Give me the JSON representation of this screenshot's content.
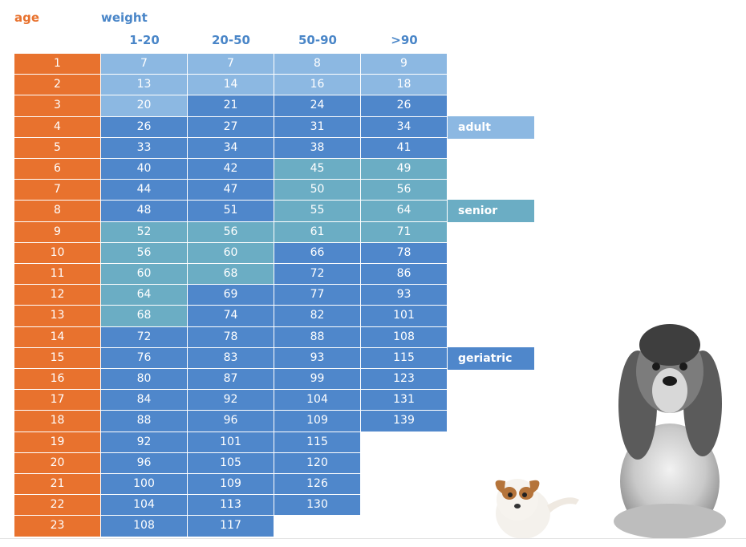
{
  "chart_data": {
    "type": "table",
    "row_header": "age",
    "column_group_header": "weight",
    "columns": [
      "1-20",
      "20-50",
      "50-90",
      ">90"
    ],
    "rows": [
      {
        "age": "1",
        "values": [
          "7",
          "7",
          "8",
          "9"
        ]
      },
      {
        "age": "2",
        "values": [
          "13",
          "14",
          "16",
          "18"
        ]
      },
      {
        "age": "3",
        "values": [
          "20",
          "21",
          "24",
          "26"
        ]
      },
      {
        "age": "4",
        "values": [
          "26",
          "27",
          "31",
          "34"
        ]
      },
      {
        "age": "5",
        "values": [
          "33",
          "34",
          "38",
          "41"
        ]
      },
      {
        "age": "6",
        "values": [
          "40",
          "42",
          "45",
          "49"
        ]
      },
      {
        "age": "7",
        "values": [
          "44",
          "47",
          "50",
          "56"
        ]
      },
      {
        "age": "8",
        "values": [
          "48",
          "51",
          "55",
          "64"
        ]
      },
      {
        "age": "9",
        "values": [
          "52",
          "56",
          "61",
          "71"
        ]
      },
      {
        "age": "10",
        "values": [
          "56",
          "60",
          "66",
          "78"
        ]
      },
      {
        "age": "11",
        "values": [
          "60",
          "68",
          "72",
          "86"
        ]
      },
      {
        "age": "12",
        "values": [
          "64",
          "69",
          "77",
          "93"
        ]
      },
      {
        "age": "13",
        "values": [
          "68",
          "74",
          "82",
          "101"
        ]
      },
      {
        "age": "14",
        "values": [
          "72",
          "78",
          "88",
          "108"
        ]
      },
      {
        "age": "15",
        "values": [
          "76",
          "83",
          "93",
          "115"
        ]
      },
      {
        "age": "16",
        "values": [
          "80",
          "87",
          "99",
          "123"
        ]
      },
      {
        "age": "17",
        "values": [
          "84",
          "92",
          "104",
          "131"
        ]
      },
      {
        "age": "18",
        "values": [
          "88",
          "96",
          "109",
          "139"
        ]
      },
      {
        "age": "19",
        "values": [
          "92",
          "101",
          "115",
          ""
        ]
      },
      {
        "age": "20",
        "values": [
          "96",
          "105",
          "120",
          ""
        ]
      },
      {
        "age": "21",
        "values": [
          "100",
          "109",
          "126",
          ""
        ]
      },
      {
        "age": "22",
        "values": [
          "104",
          "113",
          "130",
          ""
        ]
      },
      {
        "age": "23",
        "values": [
          "108",
          "117",
          "",
          ""
        ]
      }
    ],
    "stages": [
      "adult",
      "senior",
      "geriatric"
    ],
    "cell_stage": [
      [
        "adult",
        "adult",
        "adult",
        "adult"
      ],
      [
        "adult",
        "adult",
        "adult",
        "adult"
      ],
      [
        "adult",
        "geriatric",
        "geriatric",
        "geriatric"
      ],
      [
        "geriatric",
        "geriatric",
        "geriatric",
        "geriatric"
      ],
      [
        "geriatric",
        "geriatric",
        "geriatric",
        "geriatric"
      ],
      [
        "geriatric",
        "geriatric",
        "senior",
        "senior"
      ],
      [
        "geriatric",
        "geriatric",
        "senior",
        "senior"
      ],
      [
        "geriatric",
        "geriatric",
        "senior",
        "senior"
      ],
      [
        "senior",
        "senior",
        "senior",
        "senior"
      ],
      [
        "senior",
        "senior",
        "geriatric",
        "geriatric"
      ],
      [
        "senior",
        "senior",
        "geriatric",
        "geriatric"
      ],
      [
        "senior",
        "geriatric",
        "geriatric",
        "geriatric"
      ],
      [
        "senior",
        "geriatric",
        "geriatric",
        "geriatric"
      ],
      [
        "geriatric",
        "geriatric",
        "geriatric",
        "geriatric"
      ],
      [
        "geriatric",
        "geriatric",
        "geriatric",
        "geriatric"
      ],
      [
        "geriatric",
        "geriatric",
        "geriatric",
        "geriatric"
      ],
      [
        "geriatric",
        "geriatric",
        "geriatric",
        "geriatric"
      ],
      [
        "geriatric",
        "geriatric",
        "geriatric",
        "geriatric"
      ],
      [
        "geriatric",
        "geriatric",
        "geriatric",
        ""
      ],
      [
        "geriatric",
        "geriatric",
        "geriatric",
        ""
      ],
      [
        "geriatric",
        "geriatric",
        "geriatric",
        ""
      ],
      [
        "geriatric",
        "geriatric",
        "geriatric",
        ""
      ],
      [
        "geriatric",
        "geriatric",
        "",
        ""
      ]
    ],
    "stage_legend": [
      {
        "label": "adult",
        "stage": "adult",
        "row": "4"
      },
      {
        "label": "senior",
        "stage": "senior",
        "row": "8"
      },
      {
        "label": "geriatric",
        "stage": "geriatric",
        "row": "15"
      }
    ],
    "colors": {
      "age": "#e8722e",
      "adult": "#8cb8e2",
      "senior": "#6badc4",
      "geriatric": "#4f87cb",
      "header_orange": "#e8722e",
      "header_blue": "#4a86c8"
    }
  }
}
